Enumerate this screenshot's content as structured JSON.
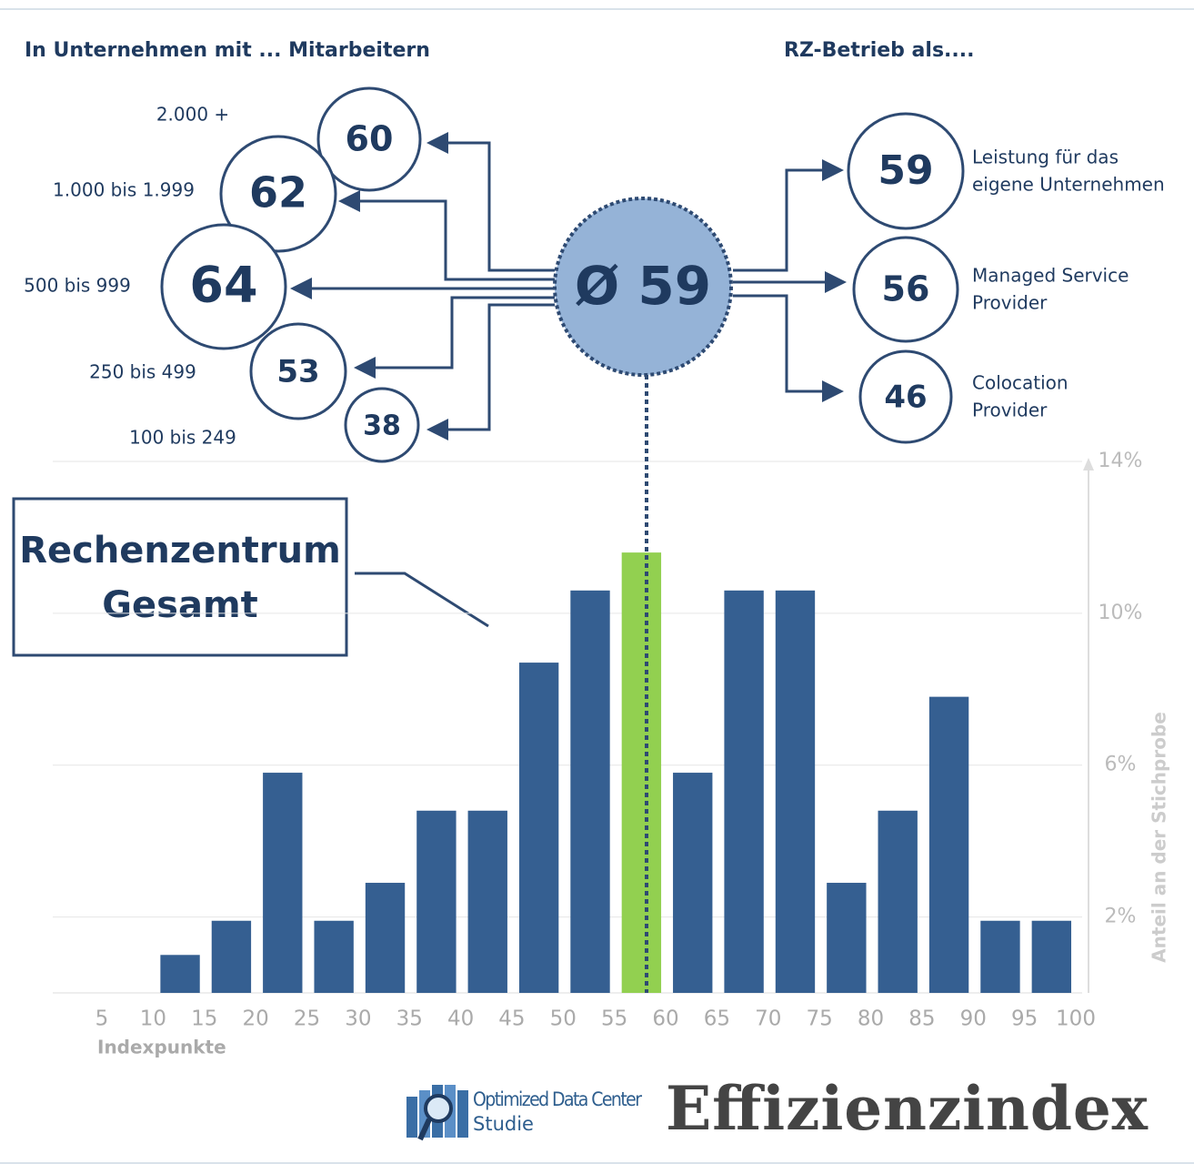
{
  "header": {
    "left_title": "In Unternehmen mit ... Mitarbeitern",
    "right_title": "RZ-Betrieb als...."
  },
  "average": {
    "symbol": "Ø",
    "value": 59
  },
  "company_size": [
    {
      "label": "2.000 +",
      "value": 60
    },
    {
      "label": "1.000 bis 1.999",
      "value": 62
    },
    {
      "label": "500 bis 999",
      "value": 64
    },
    {
      "label": "250 bis 499",
      "value": 53
    },
    {
      "label": "100 bis 249",
      "value": 38
    }
  ],
  "operation_mode": [
    {
      "label": [
        "Leistung für das",
        "eigene Unternehmen"
      ],
      "value": 59
    },
    {
      "label": [
        "Managed Service",
        "Provider"
      ],
      "value": 56
    },
    {
      "label": [
        "Colocation",
        "Provider"
      ],
      "value": 46
    }
  ],
  "callout": [
    "Rechenzentrum",
    "Gesamt"
  ],
  "chart_data": {
    "type": "histogram",
    "xlabel": "Indexpunkte",
    "ylabel": "Anteil an der Stichprobe",
    "bins": [
      5,
      10,
      15,
      20,
      25,
      30,
      35,
      40,
      45,
      50,
      55,
      60,
      65,
      70,
      75,
      80,
      85,
      90,
      95,
      100
    ],
    "values": [
      0,
      1,
      1.9,
      5.8,
      1.9,
      2.9,
      4.8,
      4.8,
      8.7,
      10.6,
      11.6,
      5.8,
      10.6,
      10.6,
      2.9,
      4.8,
      7.8,
      1.9,
      1.9
    ],
    "colors": [
      "#355f91",
      "#355f91",
      "#355f91",
      "#355f91",
      "#355f91",
      "#355f91",
      "#355f91",
      "#355f91",
      "#355f91",
      "#355f91",
      "#92d050",
      "#355f91",
      "#355f91",
      "#355f91",
      "#355f91",
      "#355f91",
      "#355f91",
      "#355f91",
      "#355f91"
    ],
    "xlim": [
      5,
      100
    ],
    "xticks": [
      5,
      10,
      15,
      20,
      25,
      30,
      35,
      40,
      45,
      50,
      55,
      60,
      65,
      70,
      75,
      80,
      85,
      90,
      95,
      100
    ],
    "ylim": [
      0,
      14
    ],
    "yticks": [
      {
        "value": 2,
        "label": "2%"
      },
      {
        "value": 6,
        "label": "6%"
      },
      {
        "value": 10,
        "label": "10%"
      },
      {
        "value": 14,
        "label": "14%"
      }
    ],
    "grid": true
  },
  "logo": {
    "name": "Optimized Data Center",
    "sub": "Studie"
  },
  "brand": "Effizienzindex"
}
